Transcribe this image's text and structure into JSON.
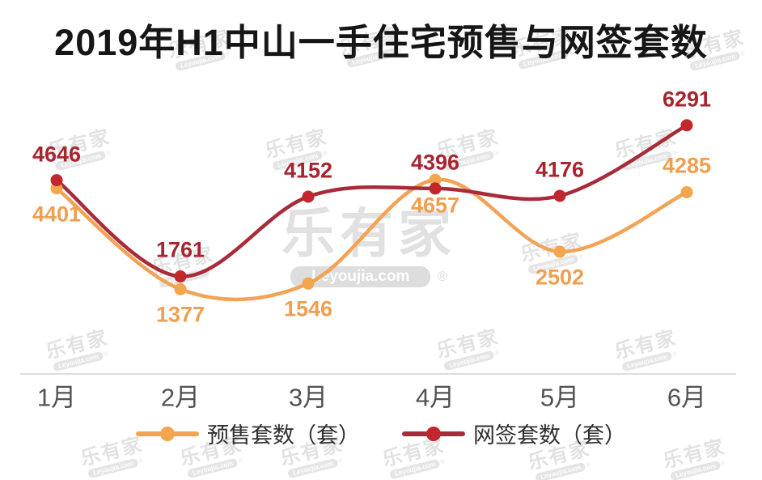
{
  "title": "2019年H1中山一手住宅预售与网签套数",
  "watermark": {
    "brand": "乐有家",
    "domain": "Leyoujia.com",
    "registered": "®"
  },
  "chart_data": {
    "type": "line",
    "smooth": true,
    "title": "2019年H1中山一手住宅预售与网签套数",
    "categories": [
      "1月",
      "2月",
      "3月",
      "4月",
      "5月",
      "6月"
    ],
    "series": [
      {
        "key": "presale",
        "name": "预售套数（套）",
        "values": [
          4401,
          1377,
          1546,
          4657,
          2502,
          4285
        ],
        "line_color": "#f2a355",
        "dot_color": "#f3a64e",
        "label_color": "#ef9f4f",
        "label_pos": [
          "below",
          "below",
          "below",
          "below",
          "below",
          "above"
        ]
      },
      {
        "key": "online-sign",
        "name": "网签套数（套）",
        "values": [
          4646,
          1761,
          4152,
          4396,
          4176,
          6291
        ],
        "line_color": "#a72b38",
        "dot_color": "#c1272d",
        "label_color": "#a8242e",
        "label_pos": [
          "above",
          "above",
          "above",
          "above",
          "above",
          "above"
        ]
      }
    ],
    "xlabel": "",
    "ylabel": "",
    "ylim": [
      0,
      6800
    ],
    "grid": false,
    "legend_position": "bottom",
    "axis_line_color": "#dcdcdc"
  }
}
